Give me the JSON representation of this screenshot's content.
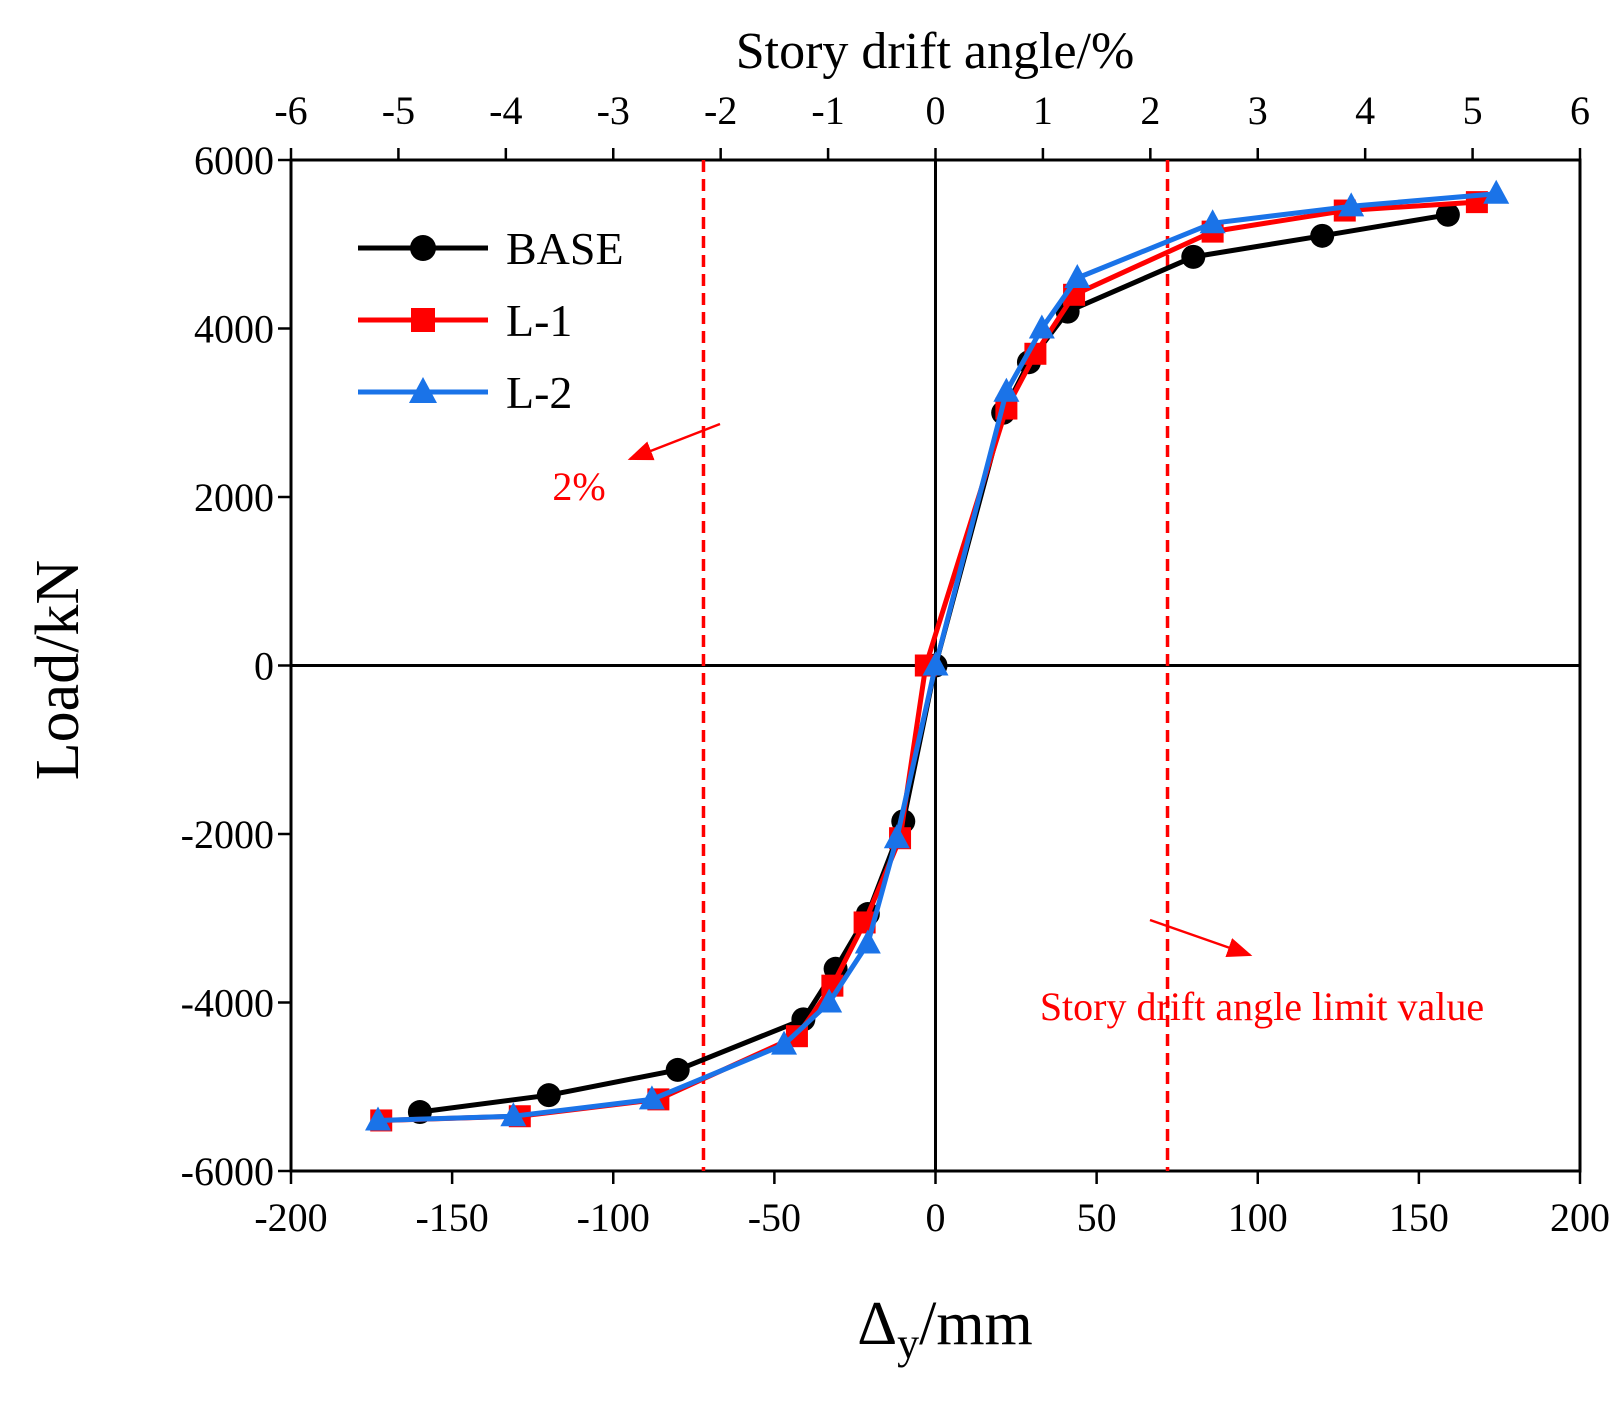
{
  "chart_data": {
    "type": "line",
    "title": "Story drift angle/%",
    "xlabel_main": "Δ",
    "xlabel_sub": "y",
    "xlabel_unit": "/mm",
    "ylabel": "Load/kN",
    "xlim": [
      -200,
      200
    ],
    "ylim": [
      -6000,
      6000
    ],
    "top_xlim": [
      -6,
      6
    ],
    "xticks": [
      -200,
      -150,
      -100,
      -50,
      0,
      50,
      100,
      150,
      200
    ],
    "yticks": [
      -6000,
      -4000,
      -2000,
      0,
      2000,
      4000,
      6000
    ],
    "top_ticks": [
      -6,
      -5,
      -4,
      -3,
      -2,
      -1,
      0,
      1,
      2,
      3,
      4,
      5,
      6
    ],
    "colors": {
      "BASE": "#000000",
      "L-1": "#ff0000",
      "L-2": "#1a73e8",
      "limit": "#ff0000"
    },
    "series": [
      {
        "name": "BASE",
        "marker": "circle",
        "x": [
          -160,
          -120,
          -80,
          -41,
          -31,
          -21,
          -10,
          0,
          21,
          29,
          41,
          80,
          120,
          159
        ],
        "y": [
          -5300,
          -5100,
          -4800,
          -4200,
          -3600,
          -2950,
          -1850,
          0,
          3000,
          3600,
          4200,
          4850,
          5100,
          5350
        ]
      },
      {
        "name": "L-1",
        "marker": "square",
        "x": [
          -172,
          -129,
          -86,
          -43,
          -32,
          -22,
          -11,
          -3,
          22,
          31,
          43,
          86,
          127,
          168
        ],
        "y": [
          -5400,
          -5350,
          -5150,
          -4400,
          -3800,
          -3050,
          -2050,
          0,
          3050,
          3700,
          4400,
          5150,
          5400,
          5500
        ]
      },
      {
        "name": "L-2",
        "marker": "triangle",
        "x": [
          -173,
          -131,
          -88,
          -47,
          -33,
          -21,
          -12,
          0,
          22,
          33,
          44,
          86,
          129,
          174
        ],
        "y": [
          -5400,
          -5350,
          -5150,
          -4500,
          -4000,
          -3300,
          -2050,
          0,
          3250,
          4000,
          4600,
          5250,
          5450,
          5600
        ]
      }
    ],
    "reference_lines": [
      {
        "type": "vertical",
        "x": -72,
        "style": "dashed"
      },
      {
        "type": "vertical",
        "x": 72,
        "style": "dashed"
      }
    ],
    "annotations": [
      {
        "text": "2%"
      },
      {
        "text": "Story drift angle limit value"
      }
    ],
    "legend_position": "top-left",
    "grid": false
  }
}
